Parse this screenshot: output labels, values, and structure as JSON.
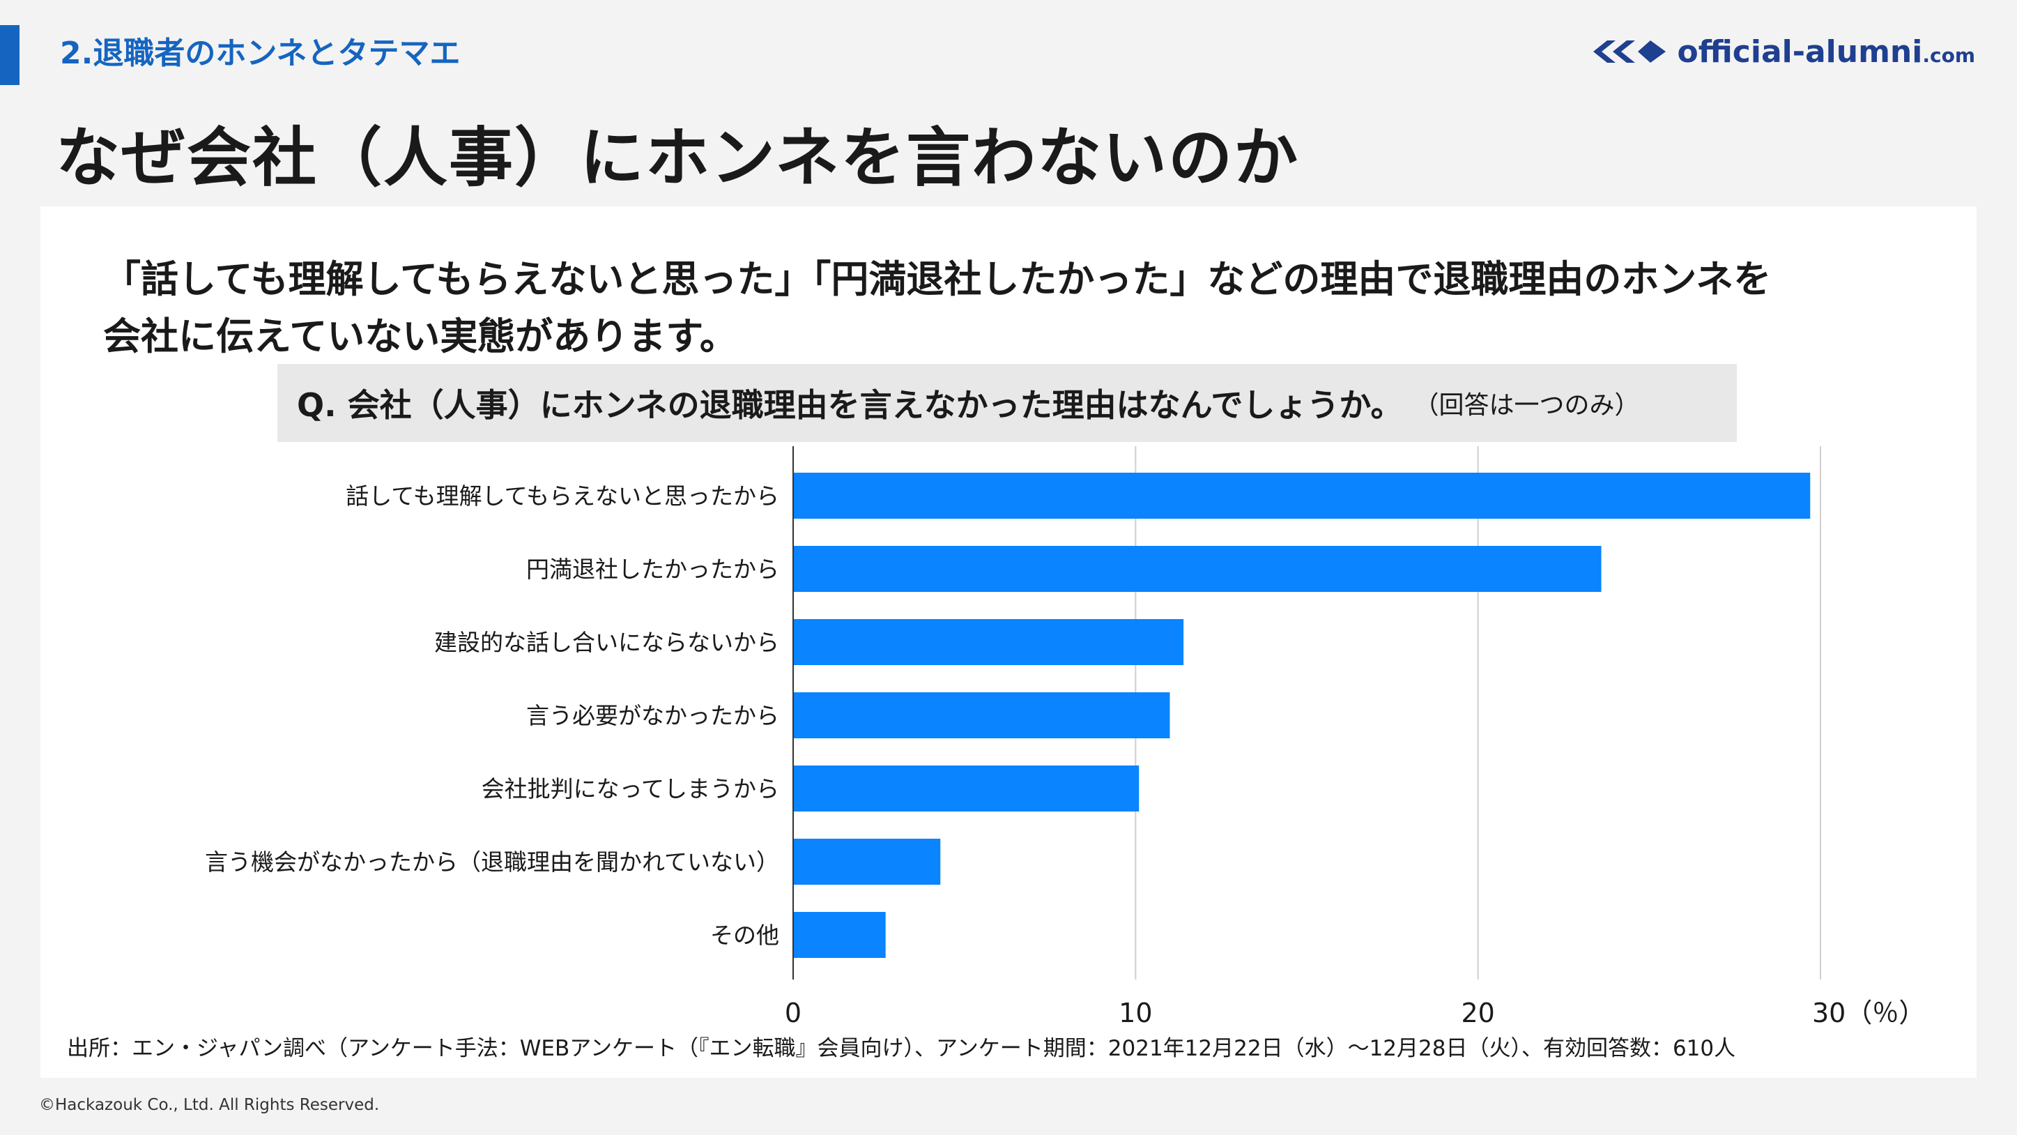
{
  "header": {
    "section_title": "2.退職者のホンネとタテマエ",
    "logo_text": "official-alumni",
    "logo_tld": ".com"
  },
  "main_title": "なぜ会社（人事）にホンネを言わないのか",
  "intro": {
    "line1": "「話しても理解してもらえないと思った」「円満退社したかった」などの理由で退職理由のホンネを",
    "line2": "会社に伝えていない実態があります。"
  },
  "question": {
    "main": "Q. 会社（人事）にホンネの退職理由を言えなかった理由はなんでしょうか。",
    "note": "（回答は一つのみ）"
  },
  "chart_data": {
    "type": "bar",
    "orientation": "horizontal",
    "categories": [
      "話しても理解してもらえないと思ったから",
      "円満退社したかったから",
      "建設的な話し合いにならないから",
      "言う必要がなかったから",
      "会社批判になってしまうから",
      "言う機会がなかったから（退職理由を聞かれていない）",
      "その他"
    ],
    "values": [
      29.7,
      23.6,
      11.4,
      11.0,
      10.1,
      4.3,
      2.7
    ],
    "xlim": [
      0,
      30
    ],
    "xticks": [
      "0",
      "10",
      "20",
      "30（％）"
    ],
    "grid": true,
    "bar_color": "#0a84ff"
  },
  "source": "出所：エン・ジャパン調べ（アンケート手法：WEBアンケート（『エン転職』会員向け）、アンケート期間：2021年12月22日（水）〜12月28日（火）、有効回答数：610人",
  "copyright": "©Hackazouk Co., Ltd. All Rights Reserved."
}
